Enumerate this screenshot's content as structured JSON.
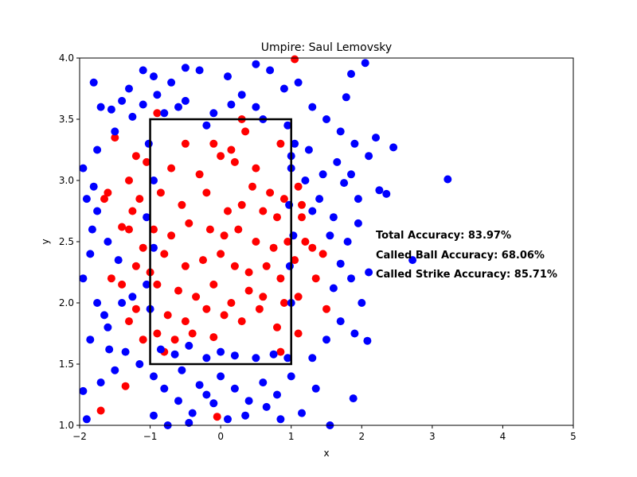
{
  "chart_data": {
    "type": "scatter",
    "title": "Umpire: Saul Lemovsky",
    "xlabel": "x",
    "ylabel": "y",
    "xlim": [
      -2,
      5
    ],
    "ylim": [
      1.0,
      4.0
    ],
    "xticks": [
      -2,
      -1,
      0,
      1,
      2,
      3,
      4,
      5
    ],
    "yticks": [
      1.0,
      1.5,
      2.0,
      2.5,
      3.0,
      3.5,
      4.0
    ],
    "xtick_labels": [
      "−2",
      "−1",
      "0",
      "1",
      "2",
      "3",
      "4",
      "5"
    ],
    "ytick_labels": [
      "1.0",
      "1.5",
      "2.0",
      "2.5",
      "3.0",
      "3.5",
      "4.0"
    ],
    "grid": false,
    "strike_zone": {
      "x": [
        -1,
        1
      ],
      "y": [
        1.5,
        3.5
      ],
      "color": "#000000"
    },
    "annotations": [
      "Total Accuracy: 83.97%",
      "Called Ball Accuracy: 68.06%",
      "Called Strike Accuracy: 85.71%"
    ],
    "series": [
      {
        "color": "#ff0000",
        "points": [
          [
            -0.9,
            3.55
          ],
          [
            -0.5,
            3.3
          ],
          [
            -0.1,
            3.3
          ],
          [
            0.15,
            3.25
          ],
          [
            0.35,
            3.4
          ],
          [
            0.5,
            3.1
          ],
          [
            0.85,
            3.3
          ],
          [
            -0.7,
            3.1
          ],
          [
            -0.3,
            3.05
          ],
          [
            0.0,
            3.2
          ],
          [
            0.2,
            3.15
          ],
          [
            0.45,
            2.95
          ],
          [
            0.7,
            2.9
          ],
          [
            0.9,
            2.85
          ],
          [
            -0.85,
            2.9
          ],
          [
            -0.55,
            2.8
          ],
          [
            -0.2,
            2.9
          ],
          [
            0.1,
            2.75
          ],
          [
            0.3,
            2.8
          ],
          [
            0.6,
            2.75
          ],
          [
            0.8,
            2.7
          ],
          [
            -0.95,
            2.6
          ],
          [
            -0.7,
            2.55
          ],
          [
            -0.45,
            2.65
          ],
          [
            -0.15,
            2.6
          ],
          [
            0.05,
            2.55
          ],
          [
            0.25,
            2.6
          ],
          [
            0.5,
            2.5
          ],
          [
            0.75,
            2.45
          ],
          [
            0.95,
            2.5
          ],
          [
            -0.8,
            2.4
          ],
          [
            -0.5,
            2.3
          ],
          [
            -0.25,
            2.35
          ],
          [
            0.0,
            2.4
          ],
          [
            0.2,
            2.3
          ],
          [
            0.4,
            2.25
          ],
          [
            0.65,
            2.3
          ],
          [
            0.85,
            2.2
          ],
          [
            -0.9,
            2.15
          ],
          [
            -0.6,
            2.1
          ],
          [
            -0.35,
            2.05
          ],
          [
            -0.1,
            2.15
          ],
          [
            0.15,
            2.0
          ],
          [
            0.4,
            2.1
          ],
          [
            0.6,
            2.05
          ],
          [
            0.9,
            2.0
          ],
          [
            -0.75,
            1.9
          ],
          [
            -0.5,
            1.85
          ],
          [
            -0.2,
            1.95
          ],
          [
            0.05,
            1.9
          ],
          [
            0.3,
            1.85
          ],
          [
            0.55,
            1.95
          ],
          [
            0.8,
            1.8
          ],
          [
            -0.9,
            1.75
          ],
          [
            -0.65,
            1.7
          ],
          [
            -0.4,
            1.75
          ],
          [
            -0.1,
            1.72
          ],
          [
            0.85,
            1.6
          ],
          [
            -0.8,
            1.6
          ],
          [
            -1.2,
            3.2
          ],
          [
            -1.5,
            3.35
          ],
          [
            -1.3,
            3.0
          ],
          [
            -1.15,
            2.85
          ],
          [
            -1.3,
            2.6
          ],
          [
            -1.1,
            2.45
          ],
          [
            -1.6,
            2.9
          ],
          [
            -1.4,
            2.15
          ],
          [
            -1.2,
            1.95
          ],
          [
            -1.1,
            1.7
          ],
          [
            -1.3,
            1.85
          ],
          [
            -1.65,
            2.85
          ],
          [
            -1.55,
            2.2
          ],
          [
            -1.25,
            2.75
          ],
          [
            -1.05,
            3.15
          ],
          [
            -1.0,
            2.25
          ],
          [
            1.1,
            2.95
          ],
          [
            1.15,
            2.7
          ],
          [
            1.2,
            2.5
          ],
          [
            1.3,
            2.45
          ],
          [
            1.45,
            2.4
          ],
          [
            1.05,
            2.35
          ],
          [
            1.1,
            2.05
          ],
          [
            1.35,
            2.2
          ],
          [
            1.5,
            1.95
          ],
          [
            1.15,
            2.8
          ],
          [
            1.05,
            3.99
          ],
          [
            0.3,
            3.5
          ],
          [
            -1.35,
            1.32
          ],
          [
            -1.7,
            1.12
          ],
          [
            -0.05,
            1.07
          ],
          [
            1.1,
            1.75
          ],
          [
            -1.4,
            2.62
          ],
          [
            -1.2,
            2.3
          ]
        ]
      },
      {
        "color": "#0000ff",
        "points": [
          [
            -1.8,
            3.8
          ],
          [
            -1.7,
            3.6
          ],
          [
            -1.5,
            3.4
          ],
          [
            -1.3,
            3.75
          ],
          [
            -1.1,
            3.9
          ],
          [
            -0.9,
            3.7
          ],
          [
            -0.7,
            3.8
          ],
          [
            -0.5,
            3.65
          ],
          [
            -0.3,
            3.9
          ],
          [
            -0.1,
            3.55
          ],
          [
            0.1,
            3.85
          ],
          [
            0.3,
            3.7
          ],
          [
            0.5,
            3.6
          ],
          [
            0.7,
            3.9
          ],
          [
            0.9,
            3.75
          ],
          [
            1.1,
            3.8
          ],
          [
            1.3,
            3.6
          ],
          [
            1.5,
            3.5
          ],
          [
            1.7,
            3.4
          ],
          [
            1.9,
            3.3
          ],
          [
            2.1,
            3.2
          ],
          [
            2.2,
            3.35
          ],
          [
            2.45,
            3.27
          ],
          [
            -1.95,
            3.1
          ],
          [
            -1.8,
            2.95
          ],
          [
            -1.75,
            2.75
          ],
          [
            -1.6,
            2.5
          ],
          [
            -1.85,
            2.4
          ],
          [
            -1.95,
            2.2
          ],
          [
            -1.75,
            2.0
          ],
          [
            -1.6,
            1.8
          ],
          [
            -1.85,
            1.7
          ],
          [
            -1.95,
            1.28
          ],
          [
            -1.7,
            1.35
          ],
          [
            -1.5,
            1.45
          ],
          [
            -1.35,
            1.6
          ],
          [
            -1.15,
            1.5
          ],
          [
            -0.95,
            1.4
          ],
          [
            -0.8,
            1.3
          ],
          [
            -0.6,
            1.2
          ],
          [
            -0.4,
            1.1
          ],
          [
            -0.2,
            1.25
          ],
          [
            0.0,
            1.4
          ],
          [
            0.2,
            1.3
          ],
          [
            0.4,
            1.2
          ],
          [
            0.6,
            1.35
          ],
          [
            0.8,
            1.25
          ],
          [
            1.0,
            1.4
          ],
          [
            1.15,
            1.1
          ],
          [
            1.3,
            1.55
          ],
          [
            1.5,
            1.7
          ],
          [
            1.7,
            1.85
          ],
          [
            1.9,
            1.75
          ],
          [
            2.0,
            2.0
          ],
          [
            2.1,
            2.25
          ],
          [
            1.8,
            2.5
          ],
          [
            1.95,
            2.65
          ],
          [
            1.6,
            2.7
          ],
          [
            1.4,
            2.85
          ],
          [
            1.2,
            3.0
          ],
          [
            1.0,
            3.1
          ],
          [
            1.05,
            3.3
          ],
          [
            1.25,
            3.25
          ],
          [
            1.45,
            3.05
          ],
          [
            1.65,
            3.15
          ],
          [
            1.85,
            3.05
          ],
          [
            2.25,
            2.92
          ],
          [
            2.35,
            2.89
          ],
          [
            3.22,
            3.01
          ],
          [
            2.72,
            2.35
          ],
          [
            2.08,
            1.69
          ],
          [
            1.88,
            1.22
          ],
          [
            2.05,
            3.96
          ],
          [
            1.85,
            3.87
          ],
          [
            1.78,
            3.68
          ],
          [
            -1.9,
            1.05
          ],
          [
            -0.95,
            1.08
          ],
          [
            -0.75,
            1.0
          ],
          [
            -0.45,
            1.02
          ],
          [
            0.1,
            1.05
          ],
          [
            0.35,
            1.08
          ],
          [
            -0.85,
            1.62
          ],
          [
            -0.65,
            1.58
          ],
          [
            -0.45,
            1.65
          ],
          [
            -0.2,
            1.55
          ],
          [
            0.0,
            1.6
          ],
          [
            0.2,
            1.57
          ],
          [
            0.5,
            1.55
          ],
          [
            0.75,
            1.58
          ],
          [
            0.95,
            1.55
          ],
          [
            -1.0,
            1.95
          ],
          [
            -1.05,
            2.15
          ],
          [
            -0.95,
            2.45
          ],
          [
            -1.05,
            2.7
          ],
          [
            -0.95,
            3.0
          ],
          [
            -1.02,
            3.3
          ],
          [
            1.0,
            2.0
          ],
          [
            0.98,
            2.3
          ],
          [
            1.03,
            2.55
          ],
          [
            0.97,
            2.8
          ],
          [
            1.0,
            3.2
          ],
          [
            0.95,
            3.45
          ],
          [
            -0.6,
            3.6
          ],
          [
            -0.2,
            3.45
          ],
          [
            0.6,
            3.5
          ],
          [
            0.15,
            3.62
          ],
          [
            -1.75,
            3.25
          ],
          [
            -1.55,
            3.58
          ],
          [
            -0.95,
            3.85
          ],
          [
            -0.5,
            3.92
          ],
          [
            0.5,
            3.95
          ],
          [
            -1.4,
            2.0
          ],
          [
            -1.65,
            1.9
          ],
          [
            -0.55,
            1.45
          ],
          [
            -0.3,
            1.33
          ],
          [
            -0.1,
            1.18
          ],
          [
            0.65,
            1.15
          ],
          [
            0.85,
            1.05
          ],
          [
            1.35,
            1.3
          ],
          [
            1.55,
            1.0
          ],
          [
            1.6,
            2.12
          ],
          [
            1.85,
            2.2
          ],
          [
            1.55,
            2.55
          ],
          [
            1.7,
            2.32
          ],
          [
            1.3,
            2.75
          ],
          [
            -1.45,
            2.35
          ],
          [
            -1.25,
            2.05
          ],
          [
            -1.58,
            1.62
          ],
          [
            -1.25,
            3.52
          ],
          [
            -1.4,
            3.65
          ],
          [
            -1.1,
            3.62
          ],
          [
            -0.8,
            3.55
          ],
          [
            -1.82,
            2.6
          ],
          [
            -1.9,
            2.85
          ],
          [
            1.75,
            2.98
          ],
          [
            1.95,
            2.85
          ]
        ]
      }
    ]
  }
}
